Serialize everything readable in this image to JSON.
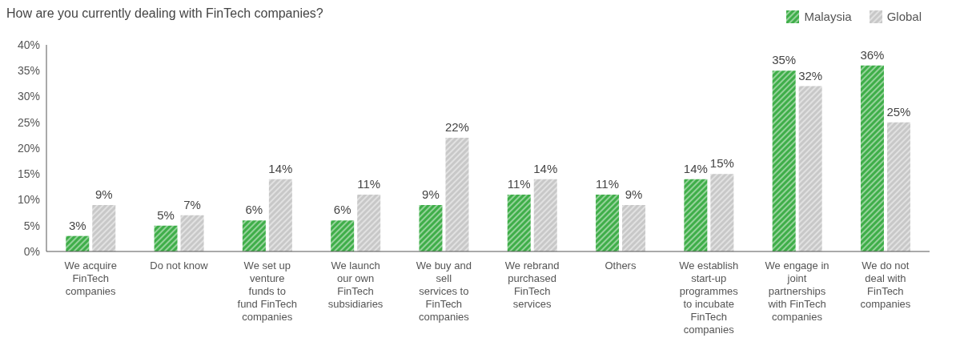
{
  "chart_data": {
    "type": "bar",
    "title": "How are you currently dealing with FinTech companies?",
    "categories": [
      "We acquire FinTech companies",
      "Do not know",
      "We set up venture funds to fund FinTech companies",
      "We launch our own FinTech subsidiaries",
      "We buy and sell services to FinTech companies",
      "We rebrand purchased FinTech services",
      "Others",
      "We establish start-up programmes to incubate FinTech companies",
      "We engage in joint partnerships with FinTech companies",
      "We do not deal with FinTech companies"
    ],
    "series": [
      {
        "name": "Malaysia",
        "color": "#3fae49",
        "values": [
          3,
          5,
          6,
          6,
          9,
          11,
          11,
          14,
          35,
          36
        ],
        "value_labels": [
          "3%",
          "5%",
          "6%",
          "6%",
          "9%",
          "11%",
          "11%",
          "14%",
          "35%",
          "36%"
        ]
      },
      {
        "name": "Global",
        "color": "#c8c8c8",
        "values": [
          9,
          7,
          14,
          11,
          22,
          14,
          9,
          15,
          32,
          25
        ],
        "value_labels": [
          "9%",
          "7%",
          "14%",
          "11%",
          "22%",
          "14%",
          "9%",
          "15%",
          "32%",
          "25%"
        ]
      }
    ],
    "ylim": [
      0,
      40
    ],
    "yticks": [
      {
        "value": 0,
        "label": "0%"
      },
      {
        "value": 5,
        "label": "5%"
      },
      {
        "value": 10,
        "label": "10%"
      },
      {
        "value": 15,
        "label": "15%"
      },
      {
        "value": 20,
        "label": "20%"
      },
      {
        "value": 25,
        "label": "25%"
      },
      {
        "value": 30,
        "label": "30%"
      },
      {
        "value": 35,
        "label": "35%"
      },
      {
        "value": 40,
        "label": "40%"
      }
    ],
    "grid": false,
    "legend": "top right"
  }
}
